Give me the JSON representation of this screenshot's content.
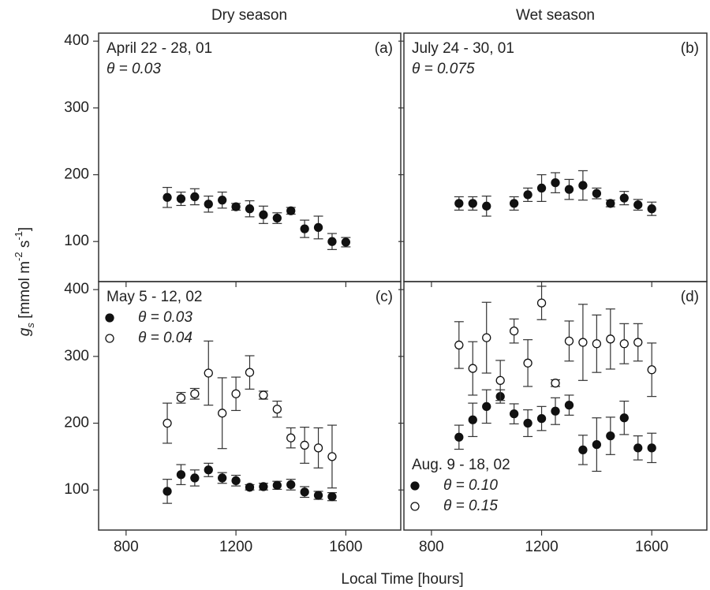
{
  "figure": {
    "column_titles": [
      "Dry season",
      "Wet season"
    ],
    "xlabel": "Local Time [hours]",
    "ylabel": [
      {
        "text": "g",
        "italic": true
      },
      {
        "text": "s",
        "italic": true,
        "sub": true
      },
      {
        "text": " [mmol m"
      },
      {
        "text": "-2",
        "sup": true
      },
      {
        "text": " s"
      },
      {
        "text": "-1",
        "sup": true
      },
      {
        "text": "]"
      }
    ]
  },
  "chart_data": [
    {
      "type": "scatter",
      "panel_label": "(a)",
      "subtitle": "April 22 - 28, 01",
      "note": "θ = 0.03",
      "xlim": [
        700,
        1800
      ],
      "ylim": [
        40,
        412
      ],
      "xticks": [
        800,
        1200,
        1600
      ],
      "yticks": [
        100,
        200,
        300,
        400
      ],
      "show_xtick_labels": false,
      "show_ytick_labels": true,
      "series": [
        {
          "color": "#111111",
          "fill": "#111111",
          "x": [
            950,
            1000,
            1050,
            1100,
            1150,
            1200,
            1250,
            1300,
            1350,
            1400,
            1450,
            1500,
            1550,
            1600
          ],
          "values": [
            166,
            164,
            167,
            156,
            162,
            152,
            149,
            140,
            135,
            146,
            119,
            121,
            100,
            99
          ],
          "errors": [
            15,
            10,
            12,
            12,
            12,
            5,
            12,
            13,
            8,
            5,
            13,
            17,
            12,
            7
          ]
        }
      ]
    },
    {
      "type": "scatter",
      "panel_label": "(b)",
      "subtitle": "July 24 - 30, 01",
      "note": "θ = 0.075",
      "xlim": [
        700,
        1800
      ],
      "ylim": [
        40,
        412
      ],
      "xticks": [
        800,
        1200,
        1600
      ],
      "yticks": [
        100,
        200,
        300,
        400
      ],
      "show_xtick_labels": false,
      "show_ytick_labels": false,
      "series": [
        {
          "color": "#111111",
          "fill": "#111111",
          "x": [
            900,
            950,
            1000,
            1100,
            1150,
            1200,
            1250,
            1300,
            1350,
            1400,
            1450,
            1500,
            1550,
            1600
          ],
          "values": [
            157,
            157,
            153,
            157,
            170,
            180,
            188,
            178,
            184,
            172,
            157,
            165,
            155,
            149
          ],
          "errors": [
            10,
            10,
            15,
            10,
            10,
            20,
            15,
            15,
            22,
            8,
            5,
            10,
            8,
            10
          ]
        }
      ]
    },
    {
      "type": "scatter",
      "panel_label": "(c)",
      "subtitle": "May 5 - 12, 02",
      "legend": "upper left",
      "xlim": [
        700,
        1800
      ],
      "ylim": [
        40,
        412
      ],
      "xticks": [
        800,
        1200,
        1600
      ],
      "yticks": [
        100,
        200,
        300,
        400
      ],
      "show_xtick_labels": true,
      "show_ytick_labels": true,
      "series": [
        {
          "name": "θ = 0.03",
          "color": "#111111",
          "fill": "#111111",
          "x": [
            950,
            1000,
            1050,
            1100,
            1150,
            1200,
            1250,
            1300,
            1350,
            1400,
            1450,
            1500,
            1550
          ],
          "values": [
            98,
            123,
            118,
            130,
            118,
            114,
            104,
            105,
            107,
            108,
            97,
            92,
            90
          ],
          "errors": [
            18,
            15,
            12,
            10,
            8,
            8,
            4,
            5,
            6,
            8,
            8,
            6,
            6
          ]
        },
        {
          "name": "θ = 0.04",
          "color": "#111111",
          "fill": "#ffffff",
          "x": [
            950,
            1000,
            1050,
            1100,
            1150,
            1200,
            1250,
            1300,
            1350,
            1400,
            1450,
            1500,
            1550
          ],
          "values": [
            200,
            238,
            244,
            275,
            215,
            244,
            276,
            242,
            221,
            178,
            167,
            163,
            150
          ],
          "errors": [
            30,
            8,
            8,
            48,
            53,
            25,
            25,
            6,
            12,
            15,
            27,
            30,
            47
          ]
        }
      ]
    },
    {
      "type": "scatter",
      "panel_label": "(d)",
      "subtitle": "Aug. 9 - 18, 02",
      "legend": "lower left",
      "xlim": [
        700,
        1800
      ],
      "ylim": [
        40,
        412
      ],
      "xticks": [
        800,
        1200,
        1600
      ],
      "yticks": [
        100,
        200,
        300,
        400
      ],
      "show_xtick_labels": true,
      "show_ytick_labels": false,
      "series": [
        {
          "name": "θ = 0.10",
          "color": "#111111",
          "fill": "#111111",
          "x": [
            900,
            950,
            1000,
            1050,
            1100,
            1150,
            1200,
            1250,
            1300,
            1350,
            1400,
            1450,
            1500,
            1550,
            1600
          ],
          "values": [
            179,
            205,
            225,
            240,
            214,
            200,
            207,
            218,
            227,
            160,
            168,
            181,
            208,
            163,
            163
          ],
          "errors": [
            18,
            25,
            25,
            10,
            15,
            20,
            18,
            20,
            15,
            22,
            40,
            28,
            25,
            18,
            22
          ]
        },
        {
          "name": "θ = 0.15",
          "color": "#111111",
          "fill": "#ffffff",
          "x": [
            900,
            950,
            1000,
            1050,
            1100,
            1150,
            1200,
            1250,
            1300,
            1350,
            1400,
            1450,
            1500,
            1550,
            1600
          ],
          "values": [
            317,
            282,
            328,
            264,
            338,
            290,
            380,
            260,
            323,
            321,
            319,
            326,
            319,
            321,
            280
          ],
          "errors": [
            35,
            40,
            53,
            30,
            18,
            35,
            25,
            5,
            30,
            57,
            43,
            45,
            30,
            28,
            40
          ]
        }
      ]
    }
  ]
}
